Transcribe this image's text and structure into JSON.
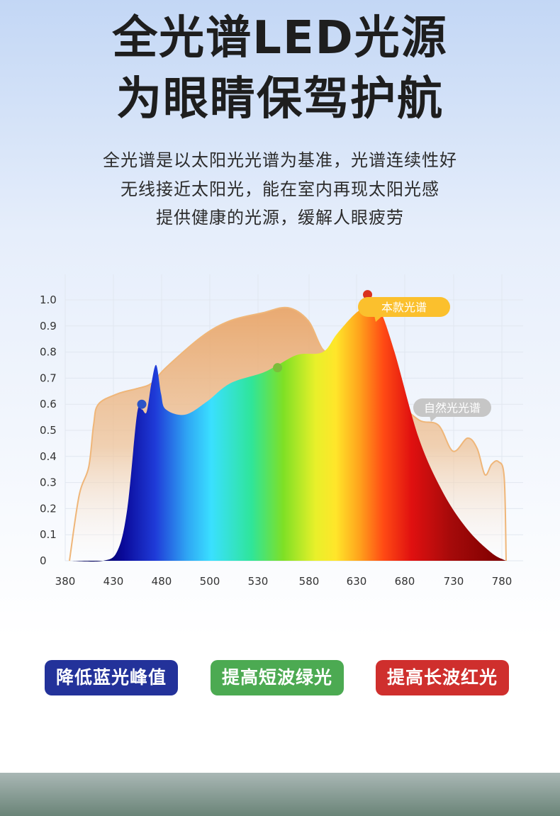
{
  "header": {
    "title_line1": "全光谱LED光源",
    "title_line2": "为眼睛保驾护航"
  },
  "description": {
    "line1": "全光谱是以太阳光光谱为基准，光谱连续性好",
    "line2": "无线接近太阳光，能在室内再现太阳光感",
    "line3": "提供健康的光源，缓解人眼疲劳"
  },
  "chart_data": {
    "type": "area",
    "x_tick_labels": [
      "380",
      "430",
      "480",
      "500",
      "530",
      "580",
      "630",
      "680",
      "730",
      "780"
    ],
    "y_tick_labels": [
      "0",
      "0.1",
      "0.2",
      "0.3",
      "0.4",
      "0.5",
      "0.6",
      "0.7",
      "0.8",
      "0.9",
      "1.0"
    ],
    "ylim": [
      0,
      1.0
    ],
    "grid": true,
    "series": [
      {
        "name": "自然光光谱",
        "color": "#e9ab6c",
        "points": [
          [
            380,
            0.0
          ],
          [
            390,
            0.25
          ],
          [
            400,
            0.36
          ],
          [
            405,
            0.52
          ],
          [
            410,
            0.6
          ],
          [
            430,
            0.64
          ],
          [
            450,
            0.66
          ],
          [
            465,
            0.68
          ],
          [
            480,
            0.74
          ],
          [
            495,
            0.86
          ],
          [
            510,
            0.92
          ],
          [
            530,
            0.95
          ],
          [
            555,
            0.97
          ],
          [
            575,
            0.92
          ],
          [
            590,
            0.81
          ],
          [
            605,
            0.8
          ],
          [
            618,
            0.86
          ],
          [
            635,
            0.9
          ],
          [
            650,
            0.8
          ],
          [
            670,
            0.62
          ],
          [
            690,
            0.54
          ],
          [
            710,
            0.52
          ],
          [
            725,
            0.42
          ],
          [
            740,
            0.47
          ],
          [
            750,
            0.43
          ],
          [
            758,
            0.33
          ],
          [
            765,
            0.37
          ],
          [
            772,
            0.38
          ],
          [
            778,
            0.32
          ],
          [
            780,
            0.0
          ]
        ]
      },
      {
        "name": "本款光谱",
        "color": "#e33b1c",
        "points": [
          [
            380,
            0.0
          ],
          [
            415,
            0.0
          ],
          [
            430,
            0.04
          ],
          [
            440,
            0.2
          ],
          [
            450,
            0.56
          ],
          [
            455,
            0.58
          ],
          [
            460,
            0.57
          ],
          [
            465,
            0.68
          ],
          [
            470,
            0.75
          ],
          [
            475,
            0.64
          ],
          [
            480,
            0.58
          ],
          [
            488,
            0.56
          ],
          [
            497,
            0.61
          ],
          [
            510,
            0.68
          ],
          [
            530,
            0.72
          ],
          [
            545,
            0.75
          ],
          [
            565,
            0.79
          ],
          [
            590,
            0.8
          ],
          [
            605,
            0.87
          ],
          [
            625,
            0.95
          ],
          [
            640,
            0.98
          ],
          [
            650,
            0.96
          ],
          [
            665,
            0.8
          ],
          [
            690,
            0.47
          ],
          [
            715,
            0.26
          ],
          [
            740,
            0.12
          ],
          [
            765,
            0.03
          ],
          [
            780,
            0.0
          ]
        ]
      }
    ],
    "markers": [
      {
        "x": 455,
        "y": 0.6,
        "color": "#2b54c7"
      },
      {
        "x": 545,
        "y": 0.74,
        "color": "#7bbd3a"
      },
      {
        "x": 637,
        "y": 1.02,
        "color": "#d9321f"
      }
    ],
    "callouts": [
      {
        "text": "本款光谱",
        "color": "#fbc02d",
        "text_color": "#ffffff"
      },
      {
        "text": "自然光光谱",
        "color": "#c6c6c6",
        "text_color": "#ffffff"
      }
    ]
  },
  "buttons": [
    {
      "label": "降低蓝光峰值",
      "color": "#23329a"
    },
    {
      "label": "提高短波绿光",
      "color": "#4caa52"
    },
    {
      "label": "提高长波红光",
      "color": "#cf2f2d"
    }
  ],
  "footer": {
    "image": "forest-photo"
  }
}
